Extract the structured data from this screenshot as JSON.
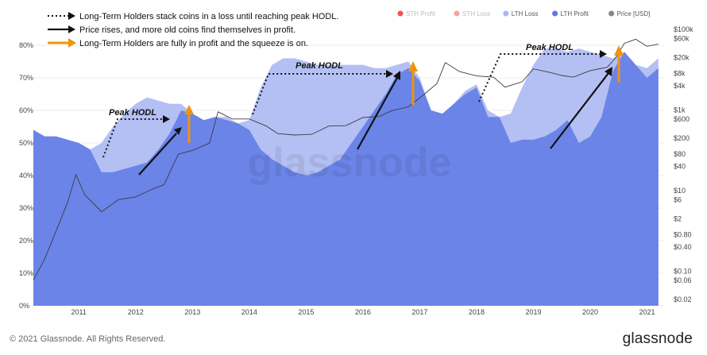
{
  "chart_data": {
    "type": "area",
    "watermark": "glassnode",
    "x_ticks": [
      "2011",
      "2012",
      "2013",
      "2014",
      "2015",
      "2016",
      "2017",
      "2018",
      "2019",
      "2020",
      "2021"
    ],
    "y_left_ticks": [
      "0%",
      "10%",
      "20%",
      "30%",
      "40%",
      "50%",
      "60%",
      "70%",
      "80%"
    ],
    "y_left_range": [
      0,
      80
    ],
    "y_right_ticks": [
      "$0.02",
      "$0.06",
      "$0.10",
      "$0.40",
      "$0.80",
      "$2",
      "$6",
      "$10",
      "$40",
      "$80",
      "$200",
      "$600",
      "$1k",
      "$4k",
      "$8k",
      "$20k",
      "$60k",
      "$100k"
    ],
    "y_right_scale": "log",
    "legend": {
      "placement": "top-right",
      "items": [
        {
          "name": "STH Profit",
          "color": "#ef5350"
        },
        {
          "name": "STH Loss",
          "color": "#f4a3a3"
        },
        {
          "name": "LTH Loss",
          "color": "#a9b7f2"
        },
        {
          "name": "LTH Profit",
          "color": "#5a76e6"
        },
        {
          "name": "Price [USD]",
          "color": "#888888"
        }
      ]
    },
    "annotations_legend": [
      {
        "style": "dotted-arrow",
        "text": "Long-Term Holders stack coins in a loss until reaching peak HODL."
      },
      {
        "style": "solid-arrow",
        "text": "Price rises, and more old coins find themselves in profit."
      },
      {
        "style": "orange-arrow",
        "text": "Long-Term Holders are fully in profit and the squeeze is on."
      }
    ],
    "peak_labels": [
      "Peak HODL",
      "Peak HODL",
      "Peak HODL"
    ],
    "series": [
      {
        "name": "LTH Total (LTH Loss + LTH Profit)",
        "x": [
          2010.7,
          2010.9,
          2011.1,
          2011.3,
          2011.5,
          2011.7,
          2011.9,
          2012.1,
          2012.3,
          2012.5,
          2012.7,
          2012.9,
          2013.1,
          2013.3,
          2013.5,
          2013.7,
          2013.9,
          2014.1,
          2014.3,
          2014.5,
          2014.7,
          2014.9,
          2015.1,
          2015.3,
          2015.5,
          2015.7,
          2015.9,
          2016.1,
          2016.3,
          2016.5,
          2016.7,
          2016.9,
          2017.1,
          2017.3,
          2017.5,
          2017.7,
          2017.9,
          2018.1,
          2018.3,
          2018.5,
          2018.7,
          2018.9,
          2019.1,
          2019.3,
          2019.5,
          2019.7,
          2019.9,
          2020.1,
          2020.3,
          2020.5,
          2020.7,
          2020.9,
          2021.1,
          2021.3,
          2021.5,
          2021.7
        ],
        "values": [
          54,
          52,
          52,
          51,
          50,
          48,
          50,
          55,
          59,
          62,
          64,
          63,
          62,
          62,
          59,
          57,
          58,
          58,
          56,
          57,
          67,
          74,
          76,
          76,
          75,
          74,
          74,
          74,
          74,
          74,
          73,
          73,
          74,
          75,
          70,
          60,
          59,
          62,
          66,
          68,
          60,
          58,
          59,
          67,
          74,
          79,
          79,
          78,
          79,
          78,
          77,
          76,
          78,
          74,
          73,
          76
        ]
      },
      {
        "name": "LTH Profit",
        "x": [
          2010.7,
          2010.9,
          2011.1,
          2011.3,
          2011.5,
          2011.7,
          2011.9,
          2012.1,
          2012.3,
          2012.5,
          2012.7,
          2012.9,
          2013.1,
          2013.3,
          2013.5,
          2013.7,
          2013.9,
          2014.1,
          2014.3,
          2014.5,
          2014.7,
          2014.9,
          2015.1,
          2015.3,
          2015.5,
          2015.7,
          2015.9,
          2016.1,
          2016.3,
          2016.5,
          2016.7,
          2016.9,
          2017.1,
          2017.3,
          2017.5,
          2017.7,
          2017.9,
          2018.1,
          2018.3,
          2018.5,
          2018.7,
          2018.9,
          2019.1,
          2019.3,
          2019.5,
          2019.7,
          2019.9,
          2020.1,
          2020.3,
          2020.5,
          2020.7,
          2020.9,
          2021.1,
          2021.3,
          2021.5,
          2021.7
        ],
        "values": [
          54,
          52,
          52,
          51,
          50,
          48,
          41,
          41,
          42,
          43,
          44,
          48,
          53,
          60,
          59,
          57,
          58,
          57,
          56,
          54,
          48,
          45,
          43,
          41,
          40,
          41,
          43,
          45,
          50,
          55,
          60,
          65,
          71,
          73,
          69,
          60,
          59,
          62,
          65,
          67,
          58,
          58,
          50,
          51,
          51,
          52,
          54,
          57,
          50,
          52,
          58,
          72,
          78,
          74,
          70,
          73
        ]
      },
      {
        "name": "Price [USD]",
        "x": [
          2010.7,
          2010.9,
          2011.1,
          2011.3,
          2011.45,
          2011.6,
          2011.9,
          2012.2,
          2012.5,
          2012.8,
          2013.0,
          2013.25,
          2013.5,
          2013.8,
          2013.95,
          2014.2,
          2014.5,
          2014.8,
          2015.0,
          2015.3,
          2015.6,
          2015.9,
          2016.2,
          2016.5,
          2016.8,
          2017.0,
          2017.3,
          2017.6,
          2017.8,
          2017.95,
          2018.2,
          2018.5,
          2018.8,
          2019.0,
          2019.3,
          2019.5,
          2019.8,
          2020.0,
          2020.2,
          2020.5,
          2020.8,
          2020.95,
          2021.1,
          2021.3,
          2021.5,
          2021.7
        ],
        "values": [
          0.06,
          0.2,
          1,
          5,
          25,
          8,
          3,
          6,
          7,
          11,
          14,
          80,
          100,
          150,
          900,
          600,
          600,
          400,
          260,
          240,
          250,
          400,
          410,
          650,
          700,
          950,
          1200,
          2600,
          4500,
          15000,
          9000,
          7000,
          6500,
          3700,
          5000,
          10500,
          8500,
          7200,
          6500,
          9500,
          11500,
          20000,
          45000,
          57000,
          38000,
          43000
        ]
      }
    ]
  },
  "footer": {
    "copyright": "© 2021 Glassnode. All Rights Reserved.",
    "brand": "glassnode"
  }
}
